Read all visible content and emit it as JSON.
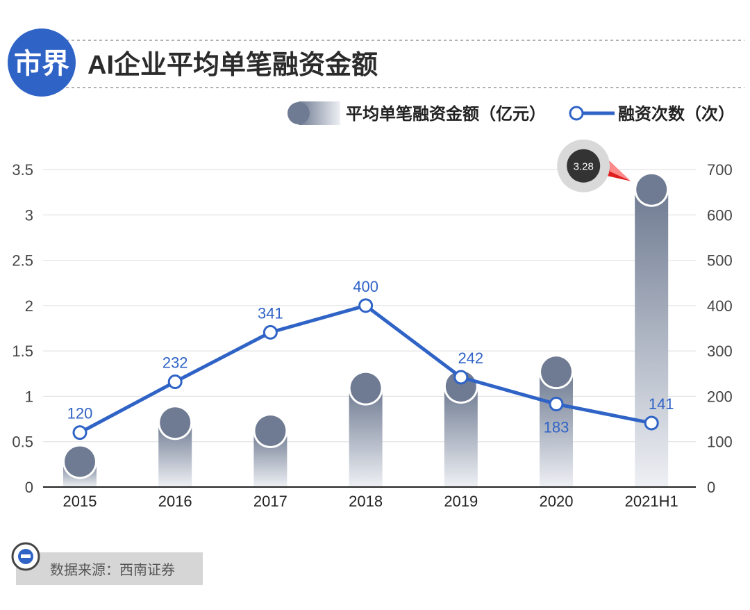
{
  "header": {
    "logo_text": "市界",
    "title": "AI企业平均单笔融资金额"
  },
  "legend": {
    "bar_label": "平均单笔融资金额（亿元）",
    "line_label": "融资次数（次）"
  },
  "source": {
    "text": "数据来源：西南证券"
  },
  "colors": {
    "accent_blue": "#2f63c6",
    "bar_dark": "#6f7b92",
    "bar_light": "#eef0f4",
    "callout_dark": "#333333",
    "callout_ring": "#d9d9d9",
    "callout_arrow": "#e02020",
    "grid": "#dddddd",
    "axis_text": "#444444"
  },
  "chart_data": {
    "type": "bar",
    "title": "AI企业平均单笔融资金额",
    "categories": [
      "2015",
      "2016",
      "2017",
      "2018",
      "2019",
      "2020",
      "2021H1"
    ],
    "series": [
      {
        "name": "平均单笔融资金额（亿元）",
        "type": "bar",
        "axis": "left",
        "values": [
          0.28,
          0.71,
          0.62,
          1.09,
          1.11,
          1.27,
          3.28
        ]
      },
      {
        "name": "融资次数（次）",
        "type": "line",
        "axis": "right",
        "values": [
          120,
          232,
          341,
          400,
          242,
          183,
          141
        ],
        "labels": [
          "120",
          "232",
          "341",
          "400",
          "242",
          "183",
          "141"
        ]
      }
    ],
    "y_left": {
      "range": [
        0,
        3.5
      ],
      "ticks": [
        "0",
        "0.5",
        "1",
        "1.5",
        "2",
        "2.5",
        "3",
        "3.5"
      ],
      "tick_values": [
        0,
        0.5,
        1,
        1.5,
        2,
        2.5,
        3,
        3.5
      ]
    },
    "y_right": {
      "range": [
        0,
        700
      ],
      "ticks": [
        "0",
        "100",
        "200",
        "300",
        "400",
        "500",
        "600",
        "700"
      ],
      "tick_values": [
        0,
        100,
        200,
        300,
        400,
        500,
        600,
        700
      ]
    },
    "annotation": {
      "category": "2021H1",
      "text": "3.28"
    },
    "grid": true,
    "legend_position": "top-right"
  }
}
